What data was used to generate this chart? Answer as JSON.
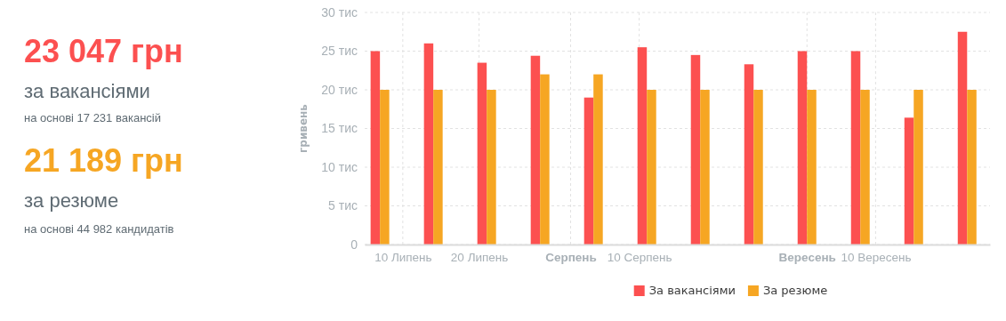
{
  "chart_data": [
    {
      "type": "other",
      "annotations": [
        "23 047 грн",
        "за вакансіями",
        "на основі 17 231 вакансій",
        "21 189 грн",
        "за резюме",
        "на основі 44 982 кандидатів"
      ]
    },
    {
      "type": "bar",
      "ylabel": "гривень",
      "x": [
        "--07-07",
        "--07-14",
        "--07-21",
        "--07-28",
        "--08-04",
        "--08-11",
        "--08-18",
        "--08-25",
        "--09-01",
        "--09-08",
        "--09-15",
        "--09-22"
      ],
      "series": [
        {
          "name": "За вакансіями",
          "color": "#fc5050",
          "values": [
            25,
            26,
            23.5,
            24.4,
            19,
            25.5,
            24.5,
            23.3,
            25,
            25,
            16.4,
            27.5
          ]
        },
        {
          "name": "За резюме",
          "color": "#f6a623",
          "values": [
            20,
            20,
            20,
            22,
            22,
            20,
            20,
            20,
            20,
            20,
            20,
            20
          ]
        }
      ],
      "xlim": [
        "--07-05",
        "--09-25"
      ],
      "xticks": [
        {
          "value": "--07-10",
          "label": "10 Липень"
        },
        {
          "value": "--07-20",
          "label": "20 Липень"
        },
        {
          "value": "--08-01",
          "label": "Серпень"
        },
        {
          "value": "--08-10",
          "label": "10 Серпень"
        },
        {
          "value": "--09-01",
          "label": "Вересень"
        },
        {
          "value": "--09-10",
          "label": "10 Вересень"
        }
      ],
      "ylim": [
        0,
        30
      ],
      "yticks": [
        0,
        {
          "value": 5,
          "label": "5 тис"
        },
        {
          "value": 10,
          "label": "10 тис"
        },
        {
          "value": 15,
          "label": "15 тис"
        },
        {
          "value": 20,
          "label": "20 тис"
        },
        {
          "value": 25,
          "label": "25 тис"
        },
        {
          "value": 30,
          "label": "30 тис"
        }
      ],
      "grid": true,
      "legend": "bottom"
    }
  ]
}
